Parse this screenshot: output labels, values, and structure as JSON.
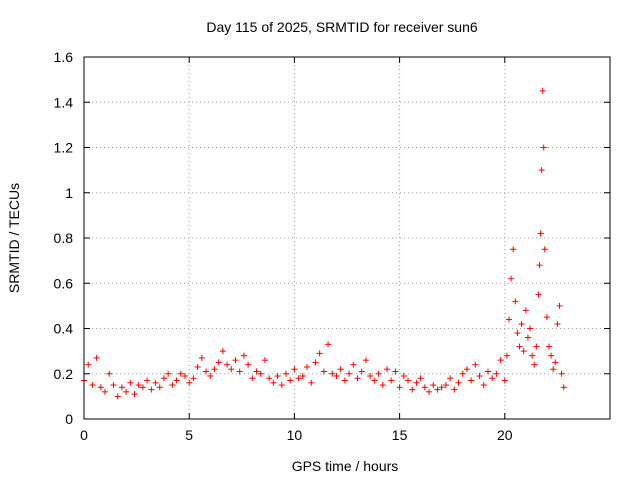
{
  "chart_data": {
    "type": "scatter",
    "title": "Day 115 of 2025, SRMTID for receiver sun6",
    "xlabel": "GPS time / hours",
    "ylabel": "SRMTID / TECUs",
    "xlim": [
      0,
      25
    ],
    "ylim": [
      0,
      1.6
    ],
    "x_ticks": [
      0,
      5,
      10,
      15,
      20
    ],
    "x_tick_labels": [
      "0",
      "5",
      "10",
      "15",
      "20"
    ],
    "y_ticks": [
      0,
      0.2,
      0.4,
      0.6,
      0.8,
      1,
      1.2,
      1.4,
      1.6
    ],
    "y_tick_labels": [
      "0",
      "0.2",
      "0.4",
      "0.6",
      "0.8",
      "1",
      "1.2",
      "1.4",
      "1.6"
    ],
    "grid": true,
    "marker": "+",
    "color": "#ff0000",
    "series": [
      {
        "name": "SRMTID",
        "x": [
          0.0,
          0.2,
          0.4,
          0.6,
          0.8,
          1.0,
          1.2,
          1.4,
          1.6,
          1.8,
          2.0,
          2.2,
          2.4,
          2.6,
          2.8,
          3.0,
          3.2,
          3.4,
          3.6,
          3.8,
          4.0,
          4.2,
          4.4,
          4.6,
          4.8,
          5.0,
          5.2,
          5.4,
          5.6,
          5.8,
          6.0,
          6.2,
          6.4,
          6.6,
          6.8,
          7.0,
          7.2,
          7.4,
          7.6,
          7.8,
          8.0,
          8.2,
          8.4,
          8.6,
          8.8,
          9.0,
          9.2,
          9.4,
          9.6,
          9.8,
          10.0,
          10.2,
          10.4,
          10.6,
          10.8,
          11.0,
          11.2,
          11.4,
          11.6,
          11.8,
          12.0,
          12.2,
          12.4,
          12.6,
          12.8,
          13.0,
          13.2,
          13.4,
          13.6,
          13.8,
          14.0,
          14.2,
          14.4,
          14.6,
          14.8,
          15.0,
          15.2,
          15.4,
          15.6,
          15.8,
          16.0,
          16.2,
          16.4,
          16.6,
          16.8,
          17.0,
          17.2,
          17.4,
          17.6,
          17.8,
          18.0,
          18.2,
          18.4,
          18.6,
          18.8,
          19.0,
          19.2,
          19.4,
          19.6,
          19.8,
          20.0,
          20.1,
          20.2,
          20.3,
          20.4,
          20.5,
          20.6,
          20.7,
          20.8,
          20.9,
          21.0,
          21.1,
          21.2,
          21.3,
          21.4,
          21.5,
          21.6,
          21.65,
          21.7,
          21.75,
          21.8,
          21.85,
          21.9,
          22.0,
          22.1,
          22.2,
          22.3,
          22.4,
          22.5,
          22.6,
          22.7,
          22.8
        ],
        "y": [
          0.17,
          0.24,
          0.15,
          0.27,
          0.14,
          0.12,
          0.2,
          0.15,
          0.1,
          0.14,
          0.12,
          0.16,
          0.11,
          0.15,
          0.14,
          0.17,
          0.13,
          0.16,
          0.14,
          0.18,
          0.2,
          0.15,
          0.17,
          0.2,
          0.19,
          0.16,
          0.18,
          0.23,
          0.27,
          0.21,
          0.19,
          0.22,
          0.25,
          0.3,
          0.24,
          0.22,
          0.26,
          0.21,
          0.28,
          0.24,
          0.18,
          0.21,
          0.2,
          0.26,
          0.18,
          0.16,
          0.19,
          0.15,
          0.2,
          0.17,
          0.22,
          0.18,
          0.19,
          0.23,
          0.16,
          0.25,
          0.29,
          0.21,
          0.33,
          0.2,
          0.19,
          0.22,
          0.17,
          0.2,
          0.24,
          0.18,
          0.21,
          0.26,
          0.19,
          0.17,
          0.2,
          0.15,
          0.22,
          0.17,
          0.21,
          0.14,
          0.19,
          0.17,
          0.13,
          0.16,
          0.18,
          0.14,
          0.12,
          0.15,
          0.13,
          0.14,
          0.15,
          0.18,
          0.13,
          0.16,
          0.2,
          0.22,
          0.17,
          0.24,
          0.19,
          0.15,
          0.21,
          0.18,
          0.2,
          0.26,
          0.17,
          0.28,
          0.44,
          0.62,
          0.75,
          0.52,
          0.38,
          0.32,
          0.42,
          0.3,
          0.48,
          0.36,
          0.4,
          0.28,
          0.24,
          0.32,
          0.55,
          0.68,
          0.82,
          1.1,
          1.45,
          1.2,
          0.75,
          0.45,
          0.32,
          0.28,
          0.22,
          0.25,
          0.42,
          0.5,
          0.2,
          0.14
        ]
      }
    ]
  }
}
